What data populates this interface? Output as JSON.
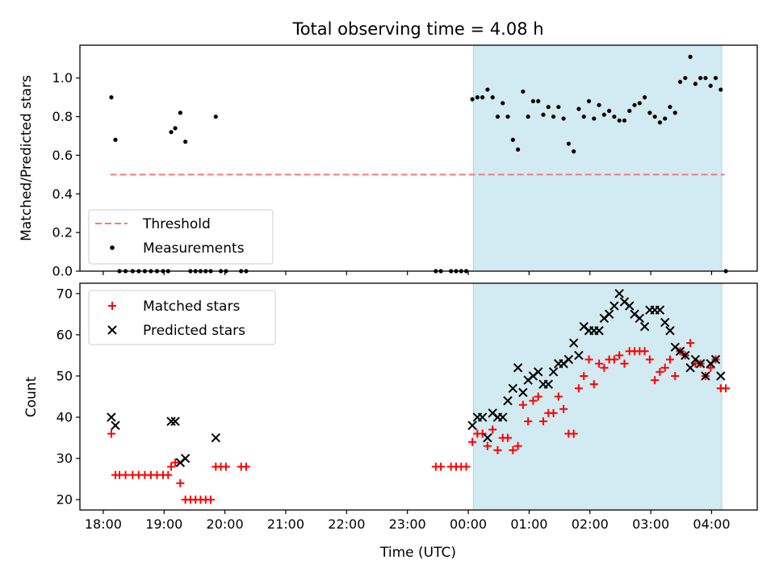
{
  "chart_data": {
    "type": "scatter",
    "title": "Total observing time = 4.08 h",
    "xlabel": "Time (UTC)",
    "x_tick_labels": [
      "18:00",
      "19:00",
      "20:00",
      "21:00",
      "22:00",
      "23:00",
      "00:00",
      "01:00",
      "02:00",
      "03:00",
      "04:00"
    ],
    "xlim": [
      "17:37",
      "04:45"
    ],
    "shaded_interval": [
      "00:05",
      "04:10"
    ],
    "colors": {
      "threshold": "#f47b7b",
      "shade": "#add8e6",
      "matched": "#ff0000",
      "predicted": "#000000",
      "measurements": "#000000"
    },
    "panels": [
      {
        "ylabel": "Matched/Predicted stars",
        "ylim": [
          0,
          1.17
        ],
        "yticks": [
          0.0,
          0.2,
          0.4,
          0.6,
          0.8,
          1.0
        ],
        "ytick_labels": [
          "0.0",
          "0.2",
          "0.4",
          "0.6",
          "0.8",
          "1.0"
        ],
        "legend_position": "lower-left",
        "series": [
          {
            "name": "Threshold",
            "type": "line",
            "style": "dashed",
            "x": [
              "18:07",
              "04:13"
            ],
            "y": [
              0.5,
              0.5
            ]
          },
          {
            "name": "Measurements",
            "type": "scatter",
            "marker": "dot",
            "points": [
              [
                "18:08",
                0.9
              ],
              [
                "18:12",
                0.68
              ],
              [
                "18:16",
                0
              ],
              [
                "18:22",
                0
              ],
              [
                "18:29",
                0
              ],
              [
                "18:35",
                0
              ],
              [
                "18:41",
                0
              ],
              [
                "18:47",
                0
              ],
              [
                "18:53",
                0
              ],
              [
                "18:59",
                0
              ],
              [
                "19:04",
                0
              ],
              [
                "19:07",
                0.72
              ],
              [
                "19:11",
                0.74
              ],
              [
                "19:16",
                0.82
              ],
              [
                "19:21",
                0.67
              ],
              [
                "19:26",
                0
              ],
              [
                "19:31",
                0
              ],
              [
                "19:36",
                0
              ],
              [
                "19:41",
                0
              ],
              [
                "19:46",
                0
              ],
              [
                "19:51",
                0.8
              ],
              [
                "19:56",
                0
              ],
              [
                "20:01",
                0
              ],
              [
                "20:16",
                0
              ],
              [
                "20:21",
                0
              ],
              [
                "23:28",
                0
              ],
              [
                "23:33",
                0
              ],
              [
                "23:43",
                0
              ],
              [
                "23:48",
                0
              ],
              [
                "23:53",
                0
              ],
              [
                "23:58",
                0
              ],
              [
                "00:04",
                0.89
              ],
              [
                "00:09",
                0.9
              ],
              [
                "00:14",
                0.9
              ],
              [
                "00:19",
                0.94
              ],
              [
                "00:24",
                0.9
              ],
              [
                "00:29",
                0.8
              ],
              [
                "00:34",
                0.87
              ],
              [
                "00:39",
                0.8
              ],
              [
                "00:44",
                0.68
              ],
              [
                "00:49",
                0.63
              ],
              [
                "00:54",
                0.93
              ],
              [
                "00:59",
                0.8
              ],
              [
                "01:04",
                0.88
              ],
              [
                "01:09",
                0.88
              ],
              [
                "01:14",
                0.81
              ],
              [
                "01:19",
                0.85
              ],
              [
                "01:24",
                0.8
              ],
              [
                "01:29",
                0.85
              ],
              [
                "01:34",
                0.79
              ],
              [
                "01:39",
                0.66
              ],
              [
                "01:44",
                0.62
              ],
              [
                "01:49",
                0.84
              ],
              [
                "01:54",
                0.8
              ],
              [
                "01:59",
                0.88
              ],
              [
                "02:04",
                0.79
              ],
              [
                "02:09",
                0.86
              ],
              [
                "02:14",
                0.81
              ],
              [
                "02:19",
                0.83
              ],
              [
                "02:24",
                0.8
              ],
              [
                "02:29",
                0.78
              ],
              [
                "02:34",
                0.78
              ],
              [
                "02:39",
                0.83
              ],
              [
                "02:44",
                0.86
              ],
              [
                "02:49",
                0.87
              ],
              [
                "02:54",
                0.9
              ],
              [
                "02:59",
                0.82
              ],
              [
                "03:04",
                0.8
              ],
              [
                "03:09",
                0.77
              ],
              [
                "03:14",
                0.79
              ],
              [
                "03:19",
                0.85
              ],
              [
                "03:24",
                0.82
              ],
              [
                "03:29",
                0.98
              ],
              [
                "03:34",
                1.0
              ],
              [
                "03:39",
                1.11
              ],
              [
                "03:44",
                0.97
              ],
              [
                "03:49",
                1.0
              ],
              [
                "03:54",
                1.0
              ],
              [
                "03:59",
                0.96
              ],
              [
                "04:04",
                1.0
              ],
              [
                "04:09",
                0.94
              ],
              [
                "04:14",
                0
              ]
            ]
          }
        ]
      },
      {
        "ylabel": "Count",
        "ylim": [
          17.5,
          72.5
        ],
        "yticks": [
          20,
          30,
          40,
          50,
          60,
          70
        ],
        "ytick_labels": [
          "20",
          "30",
          "40",
          "50",
          "60",
          "70"
        ],
        "legend_position": "upper-left",
        "series": [
          {
            "name": "Matched stars",
            "type": "scatter",
            "marker": "plus",
            "points": [
              [
                "18:08",
                36
              ],
              [
                "18:12",
                26
              ],
              [
                "18:16",
                26
              ],
              [
                "18:22",
                26
              ],
              [
                "18:29",
                26
              ],
              [
                "18:35",
                26
              ],
              [
                "18:41",
                26
              ],
              [
                "18:47",
                26
              ],
              [
                "18:53",
                26
              ],
              [
                "18:59",
                26
              ],
              [
                "19:04",
                26
              ],
              [
                "19:07",
                28
              ],
              [
                "19:11",
                29
              ],
              [
                "19:16",
                24
              ],
              [
                "19:21",
                20
              ],
              [
                "19:26",
                20
              ],
              [
                "19:31",
                20
              ],
              [
                "19:36",
                20
              ],
              [
                "19:41",
                20
              ],
              [
                "19:46",
                20
              ],
              [
                "19:51",
                28
              ],
              [
                "19:56",
                28
              ],
              [
                "20:01",
                28
              ],
              [
                "20:16",
                28
              ],
              [
                "20:21",
                28
              ],
              [
                "23:28",
                28
              ],
              [
                "23:33",
                28
              ],
              [
                "23:43",
                28
              ],
              [
                "23:48",
                28
              ],
              [
                "23:53",
                28
              ],
              [
                "23:58",
                28
              ],
              [
                "00:04",
                34
              ],
              [
                "00:09",
                36
              ],
              [
                "00:14",
                36
              ],
              [
                "00:19",
                33
              ],
              [
                "00:24",
                37
              ],
              [
                "00:29",
                32
              ],
              [
                "00:34",
                35
              ],
              [
                "00:39",
                35
              ],
              [
                "00:44",
                32
              ],
              [
                "00:49",
                33
              ],
              [
                "00:54",
                43
              ],
              [
                "00:59",
                39
              ],
              [
                "01:04",
                44
              ],
              [
                "01:09",
                45
              ],
              [
                "01:14",
                39
              ],
              [
                "01:19",
                41
              ],
              [
                "01:24",
                41
              ],
              [
                "01:29",
                45
              ],
              [
                "01:34",
                42
              ],
              [
                "01:39",
                36
              ],
              [
                "01:44",
                36
              ],
              [
                "01:49",
                47
              ],
              [
                "01:54",
                50
              ],
              [
                "01:59",
                54
              ],
              [
                "02:04",
                48
              ],
              [
                "02:09",
                53
              ],
              [
                "02:14",
                52
              ],
              [
                "02:19",
                54
              ],
              [
                "02:24",
                54
              ],
              [
                "02:29",
                55
              ],
              [
                "02:34",
                53
              ],
              [
                "02:39",
                56
              ],
              [
                "02:44",
                56
              ],
              [
                "02:49",
                56
              ],
              [
                "02:54",
                56
              ],
              [
                "02:59",
                54
              ],
              [
                "03:04",
                49
              ],
              [
                "03:09",
                51
              ],
              [
                "03:14",
                52
              ],
              [
                "03:19",
                54
              ],
              [
                "03:24",
                50
              ],
              [
                "03:29",
                56
              ],
              [
                "03:34",
                55
              ],
              [
                "03:39",
                58
              ],
              [
                "03:44",
                53
              ],
              [
                "03:49",
                53
              ],
              [
                "03:54",
                50
              ],
              [
                "03:59",
                52
              ],
              [
                "04:04",
                54
              ],
              [
                "04:09",
                47
              ],
              [
                "04:14",
                47
              ]
            ]
          },
          {
            "name": "Predicted stars",
            "type": "scatter",
            "marker": "x",
            "points": [
              [
                "18:08",
                40
              ],
              [
                "18:12",
                38
              ],
              [
                "19:07",
                39
              ],
              [
                "19:11",
                39
              ],
              [
                "19:16",
                29
              ],
              [
                "19:21",
                30
              ],
              [
                "19:51",
                35
              ],
              [
                "00:04",
                38
              ],
              [
                "00:09",
                40
              ],
              [
                "00:14",
                40
              ],
              [
                "00:19",
                35
              ],
              [
                "00:24",
                41
              ],
              [
                "00:29",
                40
              ],
              [
                "00:34",
                40
              ],
              [
                "00:39",
                44
              ],
              [
                "00:44",
                47
              ],
              [
                "00:49",
                52
              ],
              [
                "00:54",
                46
              ],
              [
                "00:59",
                49
              ],
              [
                "01:04",
                50
              ],
              [
                "01:09",
                51
              ],
              [
                "01:14",
                48
              ],
              [
                "01:19",
                48
              ],
              [
                "01:24",
                51
              ],
              [
                "01:29",
                53
              ],
              [
                "01:34",
                53
              ],
              [
                "01:39",
                54
              ],
              [
                "01:44",
                58
              ],
              [
                "01:49",
                55
              ],
              [
                "01:54",
                62
              ],
              [
                "01:59",
                61
              ],
              [
                "02:04",
                61
              ],
              [
                "02:09",
                61
              ],
              [
                "02:14",
                64
              ],
              [
                "02:19",
                65
              ],
              [
                "02:24",
                67
              ],
              [
                "02:29",
                70
              ],
              [
                "02:34",
                68
              ],
              [
                "02:39",
                67
              ],
              [
                "02:44",
                65
              ],
              [
                "02:49",
                64
              ],
              [
                "02:54",
                62
              ],
              [
                "02:59",
                66
              ],
              [
                "03:04",
                66
              ],
              [
                "03:09",
                66
              ],
              [
                "03:14",
                63
              ],
              [
                "03:19",
                61
              ],
              [
                "03:24",
                57
              ],
              [
                "03:29",
                56
              ],
              [
                "03:34",
                55
              ],
              [
                "03:39",
                52
              ],
              [
                "03:44",
                54
              ],
              [
                "03:49",
                53
              ],
              [
                "03:54",
                50
              ],
              [
                "03:59",
                53
              ],
              [
                "04:04",
                54
              ],
              [
                "04:09",
                50
              ]
            ]
          }
        ]
      }
    ]
  }
}
